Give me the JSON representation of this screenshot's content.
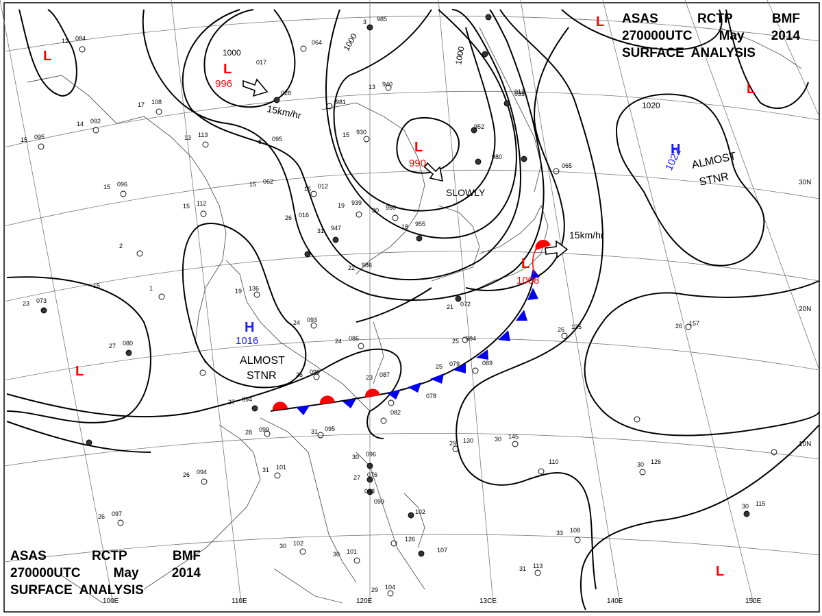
{
  "title": {
    "line1": [
      "ASAS",
      "RCTP",
      "BMF"
    ],
    "line2": [
      "270000UTC",
      "May",
      "2014"
    ],
    "line3": "SURFACE  ANALYSIS"
  },
  "colors": {
    "high": "#1a1aff",
    "low": "#ff0000",
    "front_warm": "#ff0000",
    "front_cold": "#0000ee",
    "isobar": "#000000",
    "coast": "#555555",
    "grid": "#777777"
  },
  "longitudes": [
    "110E",
    "120E",
    "13CE",
    "140E",
    "150E",
    "100E"
  ],
  "latitudes": [
    "30N",
    "20N",
    "10N"
  ],
  "isobar_labels": [
    "1000",
    "1000",
    "1000",
    "1020"
  ],
  "pressure_centers": [
    {
      "type": "L",
      "value": "996",
      "top_label": "1000"
    },
    {
      "type": "L",
      "value": "990"
    },
    {
      "type": "L",
      "value": "1008"
    },
    {
      "type": "H",
      "value": "1016",
      "note": "ALMOST STNR"
    },
    {
      "type": "H",
      "value": "1022",
      "note": "ALMOST STNR"
    },
    {
      "type": "L"
    },
    {
      "type": "L"
    },
    {
      "type": "L"
    },
    {
      "type": "L"
    },
    {
      "type": "L"
    }
  ],
  "motions": [
    "15km/hr",
    "SLOWLY",
    "15km/hr"
  ],
  "stations": [
    {
      "t": "12",
      "p": "084"
    },
    {
      "t": "17",
      "p": "108"
    },
    {
      "t": "14",
      "p": "092"
    },
    {
      "t": "13",
      "p": "113"
    },
    {
      "t": "15",
      "p": "095"
    },
    {
      "t": "8",
      "p": "095"
    },
    {
      "t": "15",
      "p": "062"
    },
    {
      "t": "15",
      "p": "096"
    },
    {
      "t": "15",
      "p": "112"
    },
    {
      "t": "2",
      "p": ""
    },
    {
      "t": "1",
      "p": ""
    },
    {
      "t": "19",
      "p": "136"
    },
    {
      "t": "15",
      "p": ""
    },
    {
      "t": "23",
      "p": "073"
    },
    {
      "t": "27",
      "p": "080"
    },
    {
      "t": "24",
      "p": "093"
    },
    {
      "t": "24",
      "p": "086"
    },
    {
      "t": "26",
      "p": "099"
    },
    {
      "t": "27",
      "p": "094"
    },
    {
      "t": "28",
      "p": "099"
    },
    {
      "t": "31",
      "p": "095"
    },
    {
      "t": "31",
      "p": "101"
    },
    {
      "t": "26",
      "p": "094"
    },
    {
      "t": "26",
      "p": "097"
    },
    {
      "t": "30",
      "p": "102"
    },
    {
      "t": "30",
      "p": "101"
    },
    {
      "t": "29",
      "p": "104"
    },
    {
      "t": "13",
      "p": "940"
    },
    {
      "t": "15",
      "p": "930"
    },
    {
      "t": "19",
      "p": "939"
    },
    {
      "t": "20",
      "p": "950"
    },
    {
      "t": "18",
      "p": "955"
    },
    {
      "t": "31",
      "p": "947"
    },
    {
      "t": "22",
      "p": "986"
    },
    {
      "t": "26",
      "p": "016"
    },
    {
      "t": "15",
      "p": "012"
    },
    {
      "t": "3",
      "p": "985"
    },
    {
      "t": "",
      "p": "064"
    },
    {
      "t": "",
      "p": "017"
    },
    {
      "t": "",
      "p": "028"
    },
    {
      "t": "",
      "p": "981"
    },
    {
      "t": "",
      "p": "952"
    },
    {
      "t": "",
      "p": "980"
    },
    {
      "t": "",
      "p": "012"
    },
    {
      "t": "",
      "p": "033"
    },
    {
      "t": "",
      "p": "065"
    },
    {
      "t": "25",
      "p": "084"
    },
    {
      "t": "25",
      "p": "079"
    },
    {
      "t": "23",
      "p": "087"
    },
    {
      "t": "",
      "p": "089"
    },
    {
      "t": "",
      "p": "078"
    },
    {
      "t": "",
      "p": "082"
    },
    {
      "t": "21",
      "p": "072"
    },
    {
      "t": "29",
      "p": "130"
    },
    {
      "t": "30",
      "p": "145"
    },
    {
      "t": "",
      "p": "110"
    },
    {
      "t": "30",
      "p": "126"
    },
    {
      "t": "26",
      "p": "135"
    },
    {
      "t": "26",
      "p": "157"
    },
    {
      "t": "33",
      "p": "108"
    },
    {
      "t": "31",
      "p": "113"
    },
    {
      "t": "30",
      "p": "115"
    },
    {
      "t": "",
      "p": "102"
    },
    {
      "t": "",
      "p": "126"
    },
    {
      "t": "",
      "p": "107"
    },
    {
      "t": "30",
      "p": "096"
    },
    {
      "t": "27",
      "p": "076"
    },
    {
      "t": "",
      "p": "093"
    },
    {
      "t": "",
      "p": "099"
    }
  ]
}
